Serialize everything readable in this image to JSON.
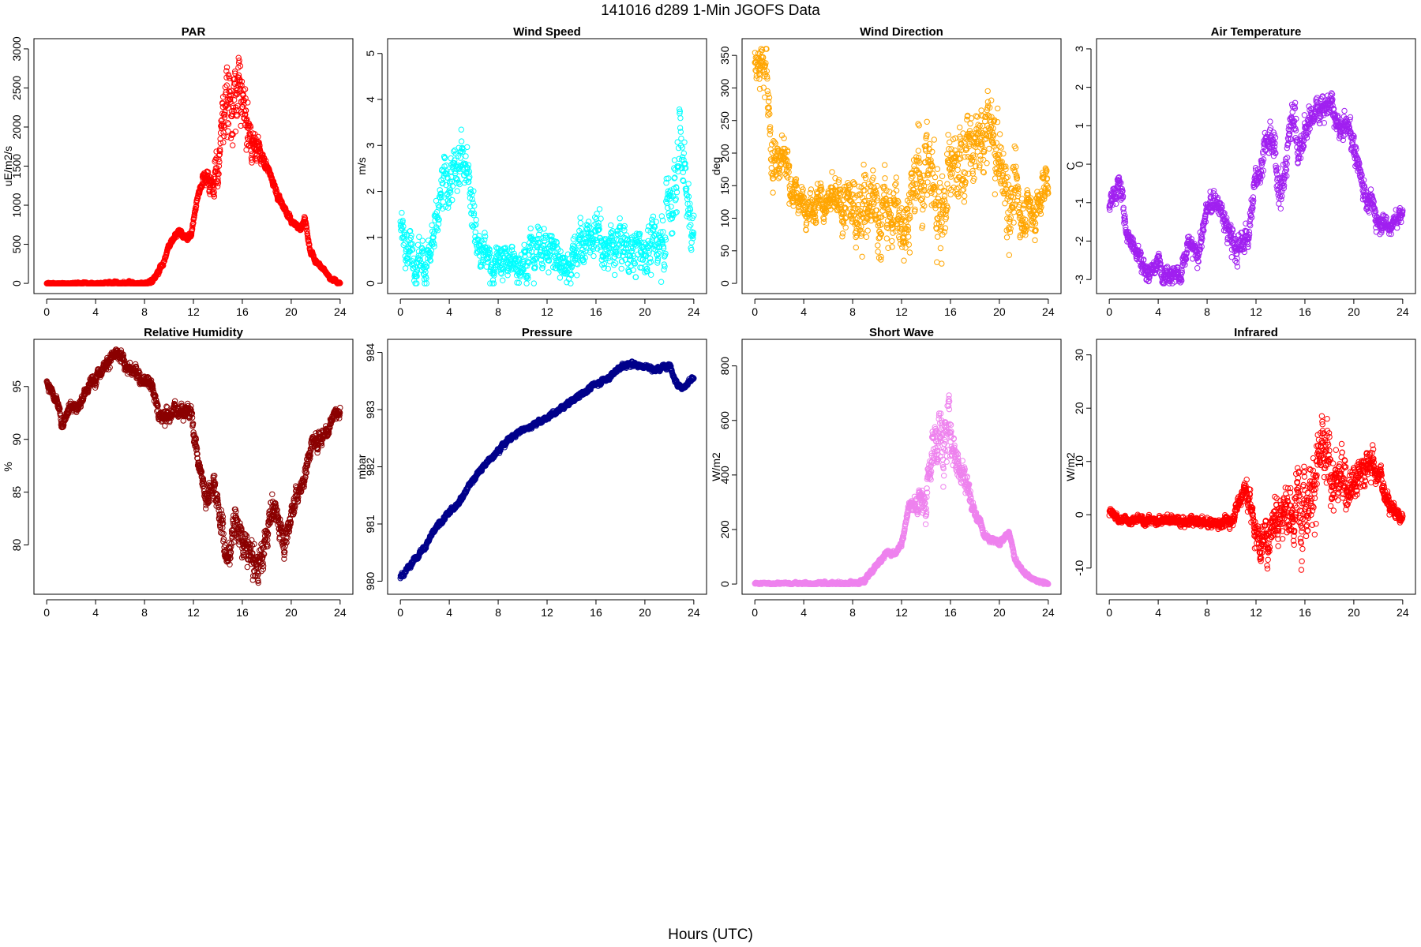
{
  "title": "141016   d289   1-Min  JGOFS Data",
  "xlabel": "Hours (UTC)",
  "chart_data": [
    {
      "type": "scatter",
      "title": "PAR",
      "ylabel": "uE/m2/s",
      "color": "#ff0000",
      "xlim": [
        0,
        24
      ],
      "ylim": [
        0,
        3000
      ],
      "xticks": [
        0,
        4,
        8,
        12,
        16,
        20,
        24
      ],
      "yticks": [
        0,
        500,
        1000,
        1500,
        2000,
        2500,
        3000
      ],
      "profile": [
        [
          0,
          0
        ],
        [
          8.2,
          0
        ],
        [
          8.8,
          60
        ],
        [
          9.5,
          250
        ],
        [
          10.2,
          550
        ],
        [
          10.8,
          680
        ],
        [
          11.3,
          580
        ],
        [
          11.8,
          620
        ],
        [
          12.4,
          1150
        ],
        [
          12.9,
          1400
        ],
        [
          13.4,
          1300
        ],
        [
          14,
          1450
        ],
        [
          14.4,
          2100
        ],
        [
          14.8,
          2550
        ],
        [
          15.2,
          2200
        ],
        [
          15.7,
          2500
        ],
        [
          16.2,
          2150
        ],
        [
          16.8,
          1800
        ],
        [
          17.4,
          1700
        ],
        [
          18,
          1500
        ],
        [
          19,
          1100
        ],
        [
          20,
          800
        ],
        [
          20.8,
          700
        ],
        [
          21.1,
          850
        ],
        [
          21.5,
          450
        ],
        [
          22,
          280
        ],
        [
          22.6,
          200
        ],
        [
          23.2,
          60
        ],
        [
          24,
          0
        ]
      ],
      "noise": [
        [
          0,
          5
        ],
        [
          12.5,
          30
        ],
        [
          14,
          200
        ],
        [
          15,
          420
        ],
        [
          16.5,
          200
        ],
        [
          18,
          40
        ],
        [
          24,
          10
        ]
      ],
      "markers": 1500
    },
    {
      "type": "scatter",
      "title": "Wind Speed",
      "ylabel": "m/s",
      "color": "#00ffff",
      "xlim": [
        0,
        24
      ],
      "ylim": [
        0,
        5.1
      ],
      "xticks": [
        0,
        4,
        8,
        12,
        16,
        20,
        24
      ],
      "yticks": [
        0,
        1,
        2,
        3,
        4,
        5
      ],
      "profile": [
        [
          0,
          1.3
        ],
        [
          0.6,
          0.9
        ],
        [
          1.2,
          0.6
        ],
        [
          2,
          0.5
        ],
        [
          2.8,
          0.8
        ],
        [
          3.4,
          1.9
        ],
        [
          4,
          2.3
        ],
        [
          4.5,
          2.2
        ],
        [
          5,
          2.7
        ],
        [
          5.5,
          2.9
        ],
        [
          6,
          1.5
        ],
        [
          6.5,
          0.7
        ],
        [
          7.5,
          0.5
        ],
        [
          9,
          0.4
        ],
        [
          10.5,
          0.7
        ],
        [
          12,
          0.8
        ],
        [
          13,
          0.5
        ],
        [
          14,
          0.6
        ],
        [
          15,
          0.9
        ],
        [
          16,
          1.0
        ],
        [
          17,
          0.7
        ],
        [
          18,
          0.9
        ],
        [
          19,
          0.6
        ],
        [
          20,
          0.8
        ],
        [
          21,
          0.7
        ],
        [
          21.6,
          1.4
        ],
        [
          22.3,
          1.8
        ],
        [
          22.8,
          3.2
        ],
        [
          23.2,
          2.6
        ],
        [
          23.6,
          1.6
        ],
        [
          24,
          1.2
        ]
      ],
      "noise": [
        [
          0,
          0.3
        ],
        [
          3.5,
          0.45
        ],
        [
          6,
          0.4
        ],
        [
          8,
          0.3
        ],
        [
          12,
          0.35
        ],
        [
          16,
          0.4
        ],
        [
          20,
          0.4
        ],
        [
          22.5,
          0.7
        ],
        [
          24,
          0.4
        ]
      ],
      "markers": 1100
    },
    {
      "type": "scatter",
      "title": "Wind Direction",
      "ylabel": "deg",
      "color": "#ffa500",
      "xlim": [
        0,
        24
      ],
      "ylim": [
        0,
        360
      ],
      "xticks": [
        0,
        4,
        8,
        12,
        16,
        20,
        24
      ],
      "yticks": [
        0,
        50,
        100,
        150,
        200,
        250,
        300,
        350
      ],
      "profile": [
        [
          0,
          335
        ],
        [
          1,
          330
        ],
        [
          1.3,
          200
        ],
        [
          2.5,
          190
        ],
        [
          3.2,
          140
        ],
        [
          4,
          125
        ],
        [
          5,
          125
        ],
        [
          6,
          125
        ],
        [
          7,
          115
        ],
        [
          7.8,
          110
        ],
        [
          8.5,
          130
        ],
        [
          9.2,
          105
        ],
        [
          10,
          110
        ],
        [
          11,
          105
        ],
        [
          12,
          100
        ],
        [
          12.8,
          115
        ],
        [
          13.5,
          175
        ],
        [
          14.2,
          180
        ],
        [
          15,
          120
        ],
        [
          15.8,
          140
        ],
        [
          16.5,
          185
        ],
        [
          17.5,
          200
        ],
        [
          18.5,
          210
        ],
        [
          19,
          240
        ],
        [
          19.8,
          200
        ],
        [
          20.5,
          145
        ],
        [
          21.5,
          120
        ],
        [
          22.5,
          110
        ],
        [
          23.2,
          115
        ],
        [
          24,
          170
        ]
      ],
      "noise": [
        [
          0,
          15
        ],
        [
          1.5,
          40
        ],
        [
          3.5,
          15
        ],
        [
          7,
          25
        ],
        [
          9,
          50
        ],
        [
          12,
          40
        ],
        [
          15,
          60
        ],
        [
          18,
          40
        ],
        [
          20,
          55
        ],
        [
          22,
          30
        ],
        [
          24,
          25
        ]
      ],
      "markers": 1300
    },
    {
      "type": "scatter",
      "title": "Air Temperature",
      "ylabel": "C",
      "color": "#a020f0",
      "xlim": [
        0,
        24
      ],
      "ylim": [
        -3.1,
        3.0
      ],
      "xticks": [
        0,
        4,
        8,
        12,
        16,
        20,
        24
      ],
      "yticks": [
        -3,
        -2,
        -1,
        0,
        1,
        2,
        3
      ],
      "profile": [
        [
          0,
          -1.1
        ],
        [
          0.8,
          -0.5
        ],
        [
          1.5,
          -1.8
        ],
        [
          2.2,
          -2.2
        ],
        [
          3,
          -2.8
        ],
        [
          4,
          -2.6
        ],
        [
          5,
          -2.8
        ],
        [
          5.8,
          -2.9
        ],
        [
          6.5,
          -2.1
        ],
        [
          7.2,
          -2.4
        ],
        [
          8,
          -1.2
        ],
        [
          8.8,
          -0.9
        ],
        [
          9.5,
          -1.6
        ],
        [
          10.5,
          -2.3
        ],
        [
          11.3,
          -1.8
        ],
        [
          12,
          -0.5
        ],
        [
          12.8,
          0.6
        ],
        [
          13.5,
          0.3
        ],
        [
          14.2,
          -0.8
        ],
        [
          15,
          1.7
        ],
        [
          15.5,
          0.2
        ],
        [
          16.2,
          1.0
        ],
        [
          17,
          1.5
        ],
        [
          18,
          1.6
        ],
        [
          18.8,
          0.8
        ],
        [
          19.6,
          1.0
        ],
        [
          20.5,
          -0.2
        ],
        [
          21,
          -0.8
        ],
        [
          22,
          -1.4
        ],
        [
          23,
          -1.6
        ],
        [
          24,
          -1.3
        ]
      ],
      "noise": [
        [
          0,
          0.2
        ],
        [
          6,
          0.2
        ],
        [
          12,
          0.3
        ],
        [
          14.5,
          0.45
        ],
        [
          17,
          0.25
        ],
        [
          20,
          0.3
        ],
        [
          24,
          0.15
        ]
      ],
      "markers": 1300
    },
    {
      "type": "scatter",
      "title": "Relative Humidity",
      "ylabel": "%",
      "color": "#8b0000",
      "xlim": [
        0,
        24
      ],
      "ylim": [
        76.3,
        98.5
      ],
      "xticks": [
        0,
        4,
        8,
        12,
        16,
        20,
        24
      ],
      "yticks": [
        80,
        85,
        90,
        95
      ],
      "profile": [
        [
          0,
          95.5
        ],
        [
          0.7,
          94
        ],
        [
          1.3,
          91.5
        ],
        [
          2,
          93.5
        ],
        [
          2.6,
          93
        ],
        [
          3.2,
          94.5
        ],
        [
          4,
          96
        ],
        [
          5,
          97.5
        ],
        [
          5.8,
          98
        ],
        [
          6.5,
          97
        ],
        [
          7.5,
          96
        ],
        [
          8.5,
          95.5
        ],
        [
          9.3,
          92
        ],
        [
          10.2,
          92.5
        ],
        [
          11,
          93
        ],
        [
          11.8,
          92.5
        ],
        [
          12.4,
          88
        ],
        [
          13,
          84.5
        ],
        [
          13.7,
          86
        ],
        [
          14.2,
          83
        ],
        [
          14.8,
          78
        ],
        [
          15.4,
          83
        ],
        [
          16,
          80
        ],
        [
          16.6,
          79
        ],
        [
          17.2,
          78
        ],
        [
          17.8,
          79.5
        ],
        [
          18.4,
          84
        ],
        [
          19,
          82
        ],
        [
          19.5,
          80.5
        ],
        [
          20.2,
          84
        ],
        [
          21,
          86
        ],
        [
          21.6,
          89.5
        ],
        [
          22.3,
          90
        ],
        [
          23,
          91
        ],
        [
          23.5,
          92.5
        ],
        [
          24,
          92.5
        ]
      ],
      "noise": [
        [
          0,
          0.35
        ],
        [
          12,
          0.6
        ],
        [
          15,
          1.1
        ],
        [
          18,
          1.2
        ],
        [
          21,
          0.7
        ],
        [
          24,
          0.4
        ]
      ],
      "markers": 1500
    },
    {
      "type": "scatter",
      "title": "Pressure",
      "ylabel": "mbar",
      "color": "#00008b",
      "xlim": [
        0,
        24
      ],
      "ylim": [
        979.95,
        984.05
      ],
      "xticks": [
        0,
        4,
        8,
        12,
        16,
        20,
        24
      ],
      "yticks": [
        980,
        981,
        982,
        983,
        984
      ],
      "profile": [
        [
          0,
          980.05
        ],
        [
          1,
          980.35
        ],
        [
          2,
          980.6
        ],
        [
          3,
          980.95
        ],
        [
          4,
          981.2
        ],
        [
          5,
          981.45
        ],
        [
          6,
          981.8
        ],
        [
          7,
          982.05
        ],
        [
          8,
          982.3
        ],
        [
          9,
          982.5
        ],
        [
          10,
          982.65
        ],
        [
          11,
          982.75
        ],
        [
          12,
          982.85
        ],
        [
          13,
          983.0
        ],
        [
          14,
          983.15
        ],
        [
          15,
          983.3
        ],
        [
          16,
          983.45
        ],
        [
          17,
          983.55
        ],
        [
          18,
          983.75
        ],
        [
          19,
          983.8
        ],
        [
          20,
          983.75
        ],
        [
          21,
          983.7
        ],
        [
          22,
          983.8
        ],
        [
          22.7,
          983.4
        ],
        [
          23.3,
          983.4
        ],
        [
          24,
          983.55
        ]
      ],
      "noise": [
        [
          0,
          0.03
        ],
        [
          24,
          0.03
        ]
      ],
      "markers": 1500
    },
    {
      "type": "scatter",
      "title": "Short Wave",
      "ylabel": "W/m2",
      "color": "#ee82ee",
      "xlim": [
        0,
        24
      ],
      "ylim": [
        0,
        860
      ],
      "xticks": [
        0,
        4,
        8,
        12,
        16,
        20,
        24
      ],
      "yticks": [
        0,
        200,
        400,
        600,
        800
      ],
      "profile": [
        [
          0,
          2
        ],
        [
          8.3,
          2
        ],
        [
          9,
          15
        ],
        [
          10,
          70
        ],
        [
          10.8,
          115
        ],
        [
          11.5,
          110
        ],
        [
          12,
          150
        ],
        [
          12.5,
          260
        ],
        [
          13,
          310
        ],
        [
          13.5,
          300
        ],
        [
          14,
          320
        ],
        [
          14.5,
          470
        ],
        [
          15,
          560
        ],
        [
          15.5,
          500
        ],
        [
          16,
          580
        ],
        [
          16.5,
          460
        ],
        [
          17,
          410
        ],
        [
          17.5,
          350
        ],
        [
          18,
          260
        ],
        [
          19,
          175
        ],
        [
          20,
          150
        ],
        [
          20.8,
          185
        ],
        [
          21.3,
          90
        ],
        [
          22,
          40
        ],
        [
          23,
          12
        ],
        [
          24,
          2
        ]
      ],
      "noise": [
        [
          0,
          2
        ],
        [
          12.5,
          8
        ],
        [
          14,
          60
        ],
        [
          15.5,
          90
        ],
        [
          17,
          40
        ],
        [
          18.5,
          10
        ],
        [
          24,
          3
        ]
      ],
      "markers": 1500
    },
    {
      "type": "scatter",
      "title": "Infrared",
      "ylabel": "W/m2",
      "color": "#ff0000",
      "xlim": [
        0,
        24
      ],
      "ylim": [
        -13,
        31
      ],
      "xticks": [
        0,
        4,
        8,
        12,
        16,
        20,
        24
      ],
      "yticks": [
        -10,
        0,
        10,
        20,
        30
      ],
      "profile": [
        [
          0,
          0.5
        ],
        [
          1,
          -1
        ],
        [
          2,
          -1
        ],
        [
          4,
          -1
        ],
        [
          6,
          -1
        ],
        [
          7,
          -1.5
        ],
        [
          9,
          -1.5
        ],
        [
          10,
          -1
        ],
        [
          10.5,
          2
        ],
        [
          11,
          5
        ],
        [
          11.5,
          2
        ],
        [
          12,
          -3
        ],
        [
          12.6,
          -6
        ],
        [
          13.2,
          -2
        ],
        [
          13.8,
          2
        ],
        [
          14.5,
          1
        ],
        [
          15,
          -2
        ],
        [
          15.5,
          3
        ],
        [
          16.5,
          6
        ],
        [
          17.5,
          11
        ],
        [
          18,
          8
        ],
        [
          19,
          6
        ],
        [
          20,
          7
        ],
        [
          21,
          9
        ],
        [
          21.5,
          10
        ],
        [
          22.3,
          6
        ],
        [
          23,
          2
        ],
        [
          23.5,
          0
        ],
        [
          24,
          -0.5
        ]
      ],
      "noise": [
        [
          0,
          0.5
        ],
        [
          10,
          0.8
        ],
        [
          12,
          2.5
        ],
        [
          14,
          4
        ],
        [
          16,
          6
        ],
        [
          18,
          5
        ],
        [
          21,
          2.5
        ],
        [
          24,
          0.6
        ]
      ],
      "markers": 1500
    }
  ]
}
